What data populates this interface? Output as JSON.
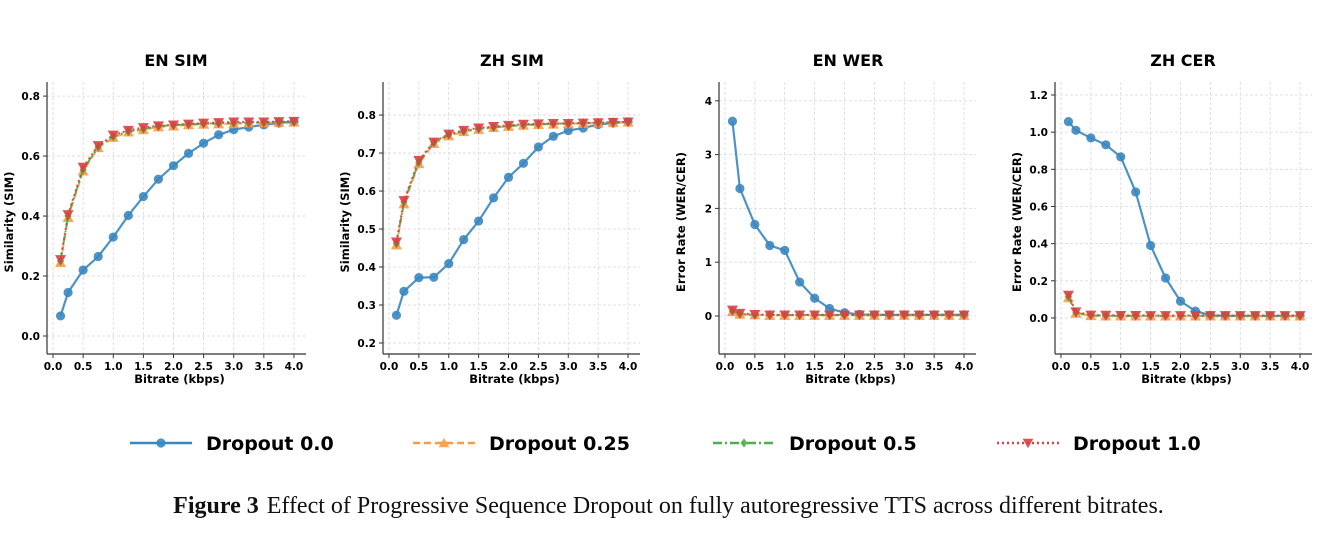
{
  "chart_data": [
    {
      "type": "line",
      "title": "EN SIM",
      "xlabel": "Bitrate (kbps)",
      "ylabel": "Similarity (SIM)",
      "xlim": [
        -0.1,
        4.2
      ],
      "ylim": [
        -0.06,
        0.847
      ],
      "xticks": [
        "0.0",
        "0.5",
        "1.0",
        "1.5",
        "2.0",
        "2.5",
        "3.0",
        "3.5",
        "4.0"
      ],
      "yticks": [
        "0.0",
        "0.2",
        "0.4",
        "0.6",
        "0.8"
      ],
      "grid": true,
      "x": [
        0.125,
        0.25,
        0.5,
        0.75,
        1.0,
        1.25,
        1.5,
        1.75,
        2.0,
        2.25,
        2.5,
        2.75,
        3.0,
        3.25,
        3.5,
        3.75,
        4.0
      ],
      "series": [
        {
          "name": "Dropout 0.0",
          "values": [
            0.067,
            0.145,
            0.22,
            0.265,
            0.33,
            0.402,
            0.465,
            0.523,
            0.568,
            0.609,
            0.643,
            0.671,
            0.688,
            0.697,
            0.704,
            0.71,
            0.714
          ]
        },
        {
          "name": "Dropout 0.25",
          "values": [
            0.245,
            0.395,
            0.55,
            0.628,
            0.662,
            0.68,
            0.688,
            0.697,
            0.7,
            0.704,
            0.706,
            0.707,
            0.708,
            0.71,
            0.711,
            0.712,
            0.713
          ]
        },
        {
          "name": "Dropout 0.5",
          "values": [
            0.25,
            0.4,
            0.555,
            0.63,
            0.665,
            0.682,
            0.69,
            0.7,
            0.703,
            0.706,
            0.708,
            0.709,
            0.71,
            0.711,
            0.712,
            0.713,
            0.714
          ]
        },
        {
          "name": "Dropout 1.0",
          "values": [
            0.255,
            0.405,
            0.563,
            0.635,
            0.67,
            0.686,
            0.695,
            0.701,
            0.704,
            0.707,
            0.71,
            0.712,
            0.714,
            0.714,
            0.714,
            0.715,
            0.716
          ]
        }
      ]
    },
    {
      "type": "line",
      "title": "ZH SIM",
      "xlabel": "Bitrate (kbps)",
      "ylabel": "Similarity (SIM)",
      "xlim": [
        -0.1,
        4.2
      ],
      "ylim": [
        0.171,
        0.887
      ],
      "xticks": [
        "0.0",
        "0.5",
        "1.0",
        "1.5",
        "2.0",
        "2.5",
        "3.0",
        "3.5",
        "4.0"
      ],
      "yticks": [
        "0.2",
        "0.3",
        "0.4",
        "0.5",
        "0.6",
        "0.7",
        "0.8"
      ],
      "grid": true,
      "x": [
        0.125,
        0.25,
        0.5,
        0.75,
        1.0,
        1.25,
        1.5,
        1.75,
        2.0,
        2.25,
        2.5,
        2.75,
        3.0,
        3.25,
        3.5,
        3.75,
        4.0
      ],
      "series": [
        {
          "name": "Dropout 0.0",
          "values": [
            0.273,
            0.336,
            0.372,
            0.373,
            0.409,
            0.472,
            0.521,
            0.582,
            0.636,
            0.673,
            0.716,
            0.744,
            0.759,
            0.766,
            0.775,
            0.779,
            0.782
          ]
        },
        {
          "name": "Dropout 0.25",
          "values": [
            0.458,
            0.566,
            0.672,
            0.725,
            0.745,
            0.756,
            0.762,
            0.767,
            0.77,
            0.773,
            0.775,
            0.776,
            0.777,
            0.778,
            0.779,
            0.78,
            0.781
          ]
        },
        {
          "name": "Dropout 0.5",
          "values": [
            0.462,
            0.571,
            0.676,
            0.728,
            0.748,
            0.758,
            0.764,
            0.768,
            0.771,
            0.774,
            0.776,
            0.777,
            0.778,
            0.779,
            0.78,
            0.781,
            0.782
          ]
        },
        {
          "name": "Dropout 1.0",
          "values": [
            0.466,
            0.575,
            0.681,
            0.729,
            0.75,
            0.76,
            0.766,
            0.77,
            0.773,
            0.776,
            0.777,
            0.778,
            0.778,
            0.779,
            0.78,
            0.781,
            0.782
          ]
        }
      ]
    },
    {
      "type": "line",
      "title": "EN WER",
      "xlabel": "Bitrate (kbps)",
      "ylabel": "Error Rate (WER/CER)",
      "xlim": [
        -0.1,
        4.2
      ],
      "ylim": [
        -0.707,
        4.35
      ],
      "xticks": [
        "0.0",
        "0.5",
        "1.0",
        "1.5",
        "2.0",
        "2.5",
        "3.0",
        "3.5",
        "4.0"
      ],
      "yticks": [
        "0",
        "1",
        "2",
        "3",
        "4"
      ],
      "grid": true,
      "x": [
        0.125,
        0.25,
        0.5,
        0.75,
        1.0,
        1.25,
        1.5,
        1.75,
        2.0,
        2.25,
        2.5,
        2.75,
        3.0,
        3.25,
        3.5,
        3.75,
        4.0
      ],
      "series": [
        {
          "name": "Dropout 0.0",
          "values": [
            3.62,
            2.37,
            1.7,
            1.31,
            1.22,
            0.63,
            0.33,
            0.14,
            0.06,
            0.03,
            0.02,
            0.02,
            0.02,
            0.02,
            0.02,
            0.02,
            0.02
          ]
        },
        {
          "name": "Dropout 0.25",
          "values": [
            0.08,
            0.03,
            0.02,
            0.01,
            0.01,
            0.01,
            0.01,
            0.01,
            0.01,
            0.01,
            0.01,
            0.01,
            0.01,
            0.01,
            0.01,
            0.01,
            0.01
          ]
        },
        {
          "name": "Dropout 0.5",
          "values": [
            0.09,
            0.04,
            0.02,
            0.02,
            0.02,
            0.02,
            0.02,
            0.02,
            0.02,
            0.02,
            0.02,
            0.02,
            0.02,
            0.02,
            0.02,
            0.02,
            0.02
          ]
        },
        {
          "name": "Dropout 1.0",
          "values": [
            0.11,
            0.05,
            0.03,
            0.02,
            0.02,
            0.02,
            0.02,
            0.02,
            0.02,
            0.02,
            0.02,
            0.02,
            0.02,
            0.02,
            0.02,
            0.02,
            0.02
          ]
        }
      ]
    },
    {
      "type": "line",
      "title": "ZH CER",
      "xlabel": "Bitrate (kbps)",
      "ylabel": "Error Rate (WER/CER)",
      "xlim": [
        -0.1,
        4.2
      ],
      "ylim": [
        -0.194,
        1.27
      ],
      "xticks": [
        "0.0",
        "0.5",
        "1.0",
        "1.5",
        "2.0",
        "2.5",
        "3.0",
        "3.5",
        "4.0"
      ],
      "yticks": [
        "0.0",
        "0.2",
        "0.4",
        "0.6",
        "0.8",
        "1.0",
        "1.2"
      ],
      "grid": true,
      "x": [
        0.125,
        0.25,
        0.5,
        0.75,
        1.0,
        1.25,
        1.5,
        1.75,
        2.0,
        2.25,
        2.5,
        2.75,
        3.0,
        3.25,
        3.5,
        3.75,
        4.0
      ],
      "series": [
        {
          "name": "Dropout 0.0",
          "values": [
            1.057,
            1.01,
            0.969,
            0.932,
            0.867,
            0.678,
            0.39,
            0.215,
            0.09,
            0.037,
            0.014,
            0.012,
            0.011,
            0.011,
            0.011,
            0.011,
            0.011
          ]
        },
        {
          "name": "Dropout 0.25",
          "values": [
            0.108,
            0.025,
            0.012,
            0.01,
            0.01,
            0.01,
            0.01,
            0.01,
            0.01,
            0.01,
            0.01,
            0.01,
            0.01,
            0.01,
            0.01,
            0.01,
            0.01
          ]
        },
        {
          "name": "Dropout 0.5",
          "values": [
            0.115,
            0.028,
            0.014,
            0.012,
            0.012,
            0.012,
            0.012,
            0.012,
            0.012,
            0.012,
            0.012,
            0.012,
            0.012,
            0.012,
            0.012,
            0.012,
            0.012
          ]
        },
        {
          "name": "Dropout 1.0",
          "values": [
            0.123,
            0.033,
            0.016,
            0.015,
            0.014,
            0.014,
            0.013,
            0.013,
            0.013,
            0.013,
            0.013,
            0.013,
            0.013,
            0.013,
            0.013,
            0.013,
            0.013
          ]
        }
      ]
    }
  ],
  "legend": {
    "placement": "bottom-center",
    "entries": [
      {
        "label": "Dropout 0.0",
        "color": "#3a87c0",
        "linestyle": "solid",
        "marker": "circle"
      },
      {
        "label": "Dropout 0.25",
        "color": "#fe9b42",
        "linestyle": "dashed",
        "marker": "triangle-up"
      },
      {
        "label": "Dropout 0.5",
        "color": "#4daf4a",
        "linestyle": "dashdot",
        "marker": "diamond"
      },
      {
        "label": "Dropout 1.0",
        "color": "#d94040",
        "linestyle": "dotted",
        "marker": "triangle-down"
      }
    ]
  },
  "caption": {
    "label": "Figure 3",
    "text": "Effect of Progressive Sequence Dropout on fully autoregressive TTS across different bitrates."
  }
}
